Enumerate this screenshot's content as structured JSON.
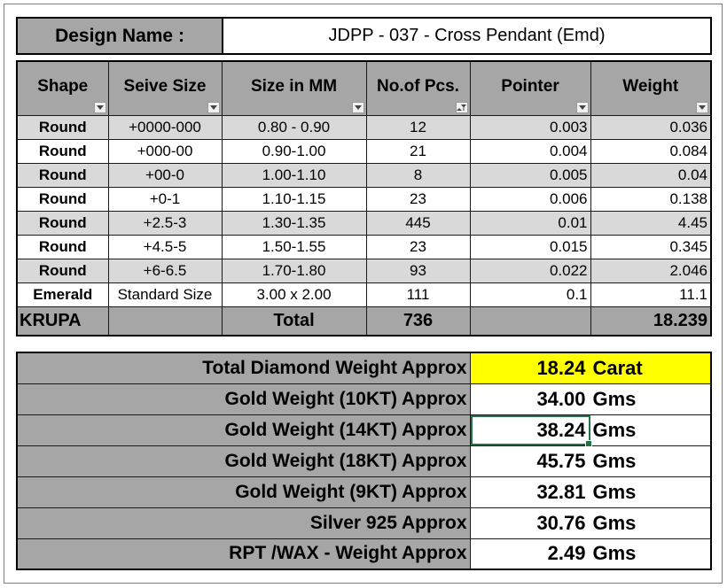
{
  "design": {
    "label": "Design Name :",
    "value": "JDPP - 037 - Cross Pendant (Emd)"
  },
  "table": {
    "headers": [
      "Shape",
      "Seive Size",
      "Size in MM",
      "No.of Pcs.",
      "Pointer",
      "Weight"
    ],
    "filter_icons": [
      "dropdown-arrow-icon",
      "dropdown-arrow-icon",
      "dropdown-arrow-icon",
      "filter-sort-icon",
      "dropdown-arrow-icon",
      "dropdown-arrow-icon"
    ],
    "rows": [
      {
        "shape": "Round",
        "seive": "+0000-000",
        "mm": "0.80 - 0.90",
        "pcs": "12",
        "pointer": "0.003",
        "weight": "0.036"
      },
      {
        "shape": "Round",
        "seive": "+000-00",
        "mm": "0.90-1.00",
        "pcs": "21",
        "pointer": "0.004",
        "weight": "0.084"
      },
      {
        "shape": "Round",
        "seive": "+00-0",
        "mm": "1.00-1.10",
        "pcs": "8",
        "pointer": "0.005",
        "weight": "0.04"
      },
      {
        "shape": "Round",
        "seive": "+0-1",
        "mm": "1.10-1.15",
        "pcs": "23",
        "pointer": "0.006",
        "weight": "0.138"
      },
      {
        "shape": "Round",
        "seive": "+2.5-3",
        "mm": "1.30-1.35",
        "pcs": "445",
        "pointer": "0.01",
        "weight": "4.45"
      },
      {
        "shape": "Round",
        "seive": "+4.5-5",
        "mm": "1.50-1.55",
        "pcs": "23",
        "pointer": "0.015",
        "weight": "0.345"
      },
      {
        "shape": "Round",
        "seive": "+6-6.5",
        "mm": "1.70-1.80",
        "pcs": "93",
        "pointer": "0.022",
        "weight": "2.046"
      },
      {
        "shape": "Emerald",
        "seive": "Standard Size",
        "mm": "3.00 x 2.00",
        "pcs": "111",
        "pointer": "0.1",
        "weight": "11.1"
      }
    ],
    "total": {
      "shape": "KRUPA",
      "seive": "",
      "mm": "Total",
      "pcs": "736",
      "pointer": "",
      "weight": "18.239"
    }
  },
  "summary": [
    {
      "label": "Total Diamond Weight Approx",
      "value": "18.24",
      "unit": "Carat"
    },
    {
      "label": "Gold Weight (10KT) Approx",
      "value": "34.00",
      "unit": "Gms"
    },
    {
      "label": "Gold Weight (14KT) Approx",
      "value": "38.24",
      "unit": "Gms"
    },
    {
      "label": "Gold Weight (18KT) Approx",
      "value": "45.75",
      "unit": "Gms"
    },
    {
      "label": "Gold Weight (9KT) Approx",
      "value": "32.81",
      "unit": "Gms"
    },
    {
      "label": "Silver 925 Approx",
      "value": "30.76",
      "unit": "Gms"
    },
    {
      "label": "RPT /WAX - Weight Approx",
      "value": "2.49",
      "unit": "Gms"
    }
  ],
  "colors": {
    "header_gray": "#a6a6a6",
    "band_gray": "#d9d9d9",
    "highlight_yellow": "#ffff00",
    "selection_green": "#217346"
  },
  "selected_cell": "summary.2.value"
}
